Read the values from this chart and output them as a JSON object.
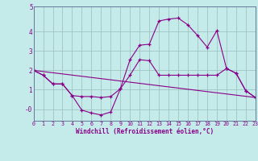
{
  "xlabel": "Windchill (Refroidissement éolien,°C)",
  "background_color": "#c5eaea",
  "grid_color": "#99bbbb",
  "line_color": "#880088",
  "xlim": [
    0,
    23
  ],
  "ylim": [
    -0.6,
    5.3
  ],
  "xticks": [
    0,
    1,
    2,
    3,
    4,
    5,
    6,
    7,
    8,
    9,
    10,
    11,
    12,
    13,
    14,
    15,
    16,
    17,
    18,
    19,
    20,
    21,
    22,
    23
  ],
  "yticks": [
    0,
    1,
    2,
    3,
    4
  ],
  "ytick_labels": [
    "-0",
    "1",
    "2",
    "3",
    "4"
  ],
  "line1_x": [
    0,
    1,
    2,
    3,
    4,
    5,
    6,
    7,
    8,
    9,
    10,
    11,
    12,
    13,
    14,
    15,
    16,
    17,
    18,
    19,
    20,
    21,
    22,
    23
  ],
  "line1_y": [
    2.0,
    1.75,
    1.3,
    1.3,
    0.7,
    0.65,
    0.65,
    0.6,
    0.65,
    1.05,
    1.75,
    2.55,
    2.5,
    1.75,
    1.75,
    1.75,
    1.75,
    1.75,
    1.75,
    1.75,
    2.1,
    1.85,
    0.95,
    0.6
  ],
  "line2_x": [
    0,
    1,
    2,
    3,
    4,
    5,
    6,
    7,
    8,
    9,
    10,
    11,
    12,
    13,
    14,
    15,
    16,
    17,
    18,
    19,
    20,
    21,
    22,
    23
  ],
  "line2_y": [
    2.0,
    1.75,
    1.3,
    1.3,
    0.7,
    -0.05,
    -0.2,
    -0.3,
    -0.15,
    1.05,
    2.55,
    3.3,
    3.35,
    4.55,
    4.65,
    4.7,
    4.35,
    3.8,
    3.2,
    4.05,
    2.1,
    1.85,
    0.95,
    0.6
  ],
  "line3_x": [
    0,
    23
  ],
  "line3_y": [
    2.0,
    0.6
  ],
  "font_size_x": 4.8,
  "font_size_y": 5.5,
  "font_size_xlabel": 5.5,
  "marker_size": 3.5,
  "line_width": 0.8
}
